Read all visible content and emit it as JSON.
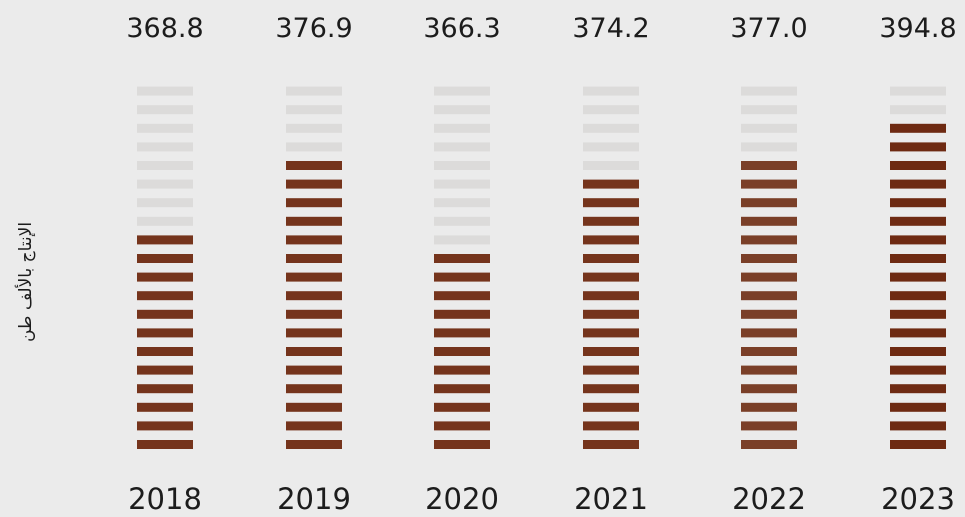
{
  "chart_data": {
    "type": "bar",
    "ylabel": "الإنتاج بالألف طن",
    "categories": [
      "2018",
      "2019",
      "2020",
      "2021",
      "2022",
      "2023"
    ],
    "value_labels": [
      "368.8",
      "376.9",
      "366.3",
      "374.2",
      "377.0",
      "394.8"
    ],
    "values": [
      368.8,
      376.9,
      366.3,
      374.2,
      377.0,
      394.8
    ],
    "filled_segments": [
      12,
      16,
      11,
      15,
      16,
      18
    ],
    "total_segments": 20,
    "colors": {
      "filled": [
        "#75341c",
        "#75341c",
        "#75341c",
        "#75341c",
        "#7a3f28",
        "#6e2a12"
      ],
      "empty": "#dcdbda",
      "background": "#ebebeb"
    }
  }
}
